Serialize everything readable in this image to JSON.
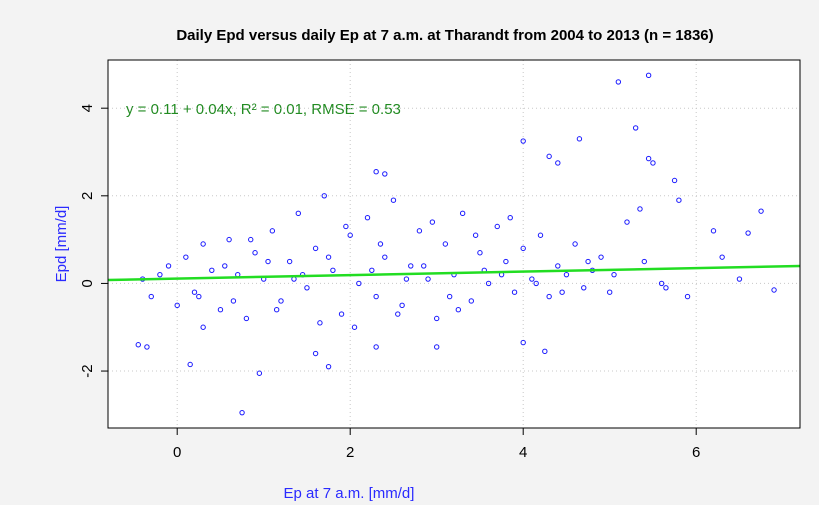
{
  "chart_data": {
    "type": "scatter",
    "title": "Daily Epd versus daily Ep at 7 a.m. at Tharandt from 2004 to 2013 (n = 1836)",
    "x_label": "Ep at 7 a.m. [mm/d]",
    "y_label": "Epd [mm/d]",
    "annotation": "y = 0.11 + 0.04x,  R² = 0.01,  RMSE = 0.53",
    "fit": {
      "intercept": 0.11,
      "slope": 0.04,
      "color": "#22dd22"
    },
    "color": "#1a1aff",
    "annotation_color": "#228b22",
    "label_color": "#2a2aff",
    "grid": true,
    "xlim": [
      -0.8,
      7.2
    ],
    "ylim": [
      -3.3,
      5.1
    ],
    "xticks": [
      0,
      2,
      4,
      6
    ],
    "yticks": [
      -2,
      0,
      2,
      4
    ],
    "x": [
      5.45,
      5.1,
      5.3,
      4.0,
      4.65,
      4.3,
      4.4,
      5.45,
      5.5,
      2.3,
      2.4,
      0.95,
      0.75,
      1.75,
      0.15,
      -0.45,
      -0.35,
      5.75,
      6.75,
      6.6,
      6.9,
      6.2,
      6.3,
      6.5,
      4.25,
      4.0,
      3.0,
      2.3,
      1.6,
      0.3,
      -0.4,
      -0.3,
      -0.2,
      -0.1,
      0.0,
      0.1,
      0.2,
      0.3,
      0.4,
      0.5,
      0.6,
      0.7,
      0.8,
      0.9,
      1.0,
      1.1,
      1.2,
      1.3,
      1.4,
      1.5,
      1.6,
      1.7,
      1.8,
      1.9,
      2.0,
      2.1,
      2.2,
      2.3,
      2.4,
      2.5,
      2.6,
      2.7,
      2.8,
      2.9,
      3.0,
      3.1,
      3.2,
      3.3,
      3.4,
      3.5,
      3.6,
      3.7,
      3.8,
      3.9,
      4.0,
      4.1,
      4.2,
      4.3,
      4.4,
      4.5,
      4.6,
      4.7,
      4.8,
      4.9,
      5.0,
      5.2,
      5.4,
      5.6,
      5.8,
      5.9,
      0.25,
      0.55,
      0.85,
      1.15,
      1.45,
      1.75,
      2.05,
      2.35,
      2.65,
      2.95,
      3.25,
      3.55,
      3.85,
      4.15,
      4.45,
      4.75,
      5.05,
      5.35,
      5.65,
      0.65,
      1.05,
      1.35,
      1.65,
      1.95,
      2.25,
      2.55,
      2.85,
      3.15,
      3.45,
      3.75
    ],
    "values": [
      4.75,
      4.6,
      3.55,
      3.25,
      3.3,
      2.9,
      2.75,
      2.85,
      2.75,
      2.55,
      2.5,
      -2.05,
      -2.95,
      -1.9,
      -1.85,
      -1.4,
      -1.45,
      2.35,
      1.65,
      1.15,
      -0.15,
      1.2,
      0.6,
      0.1,
      -1.55,
      -1.35,
      -1.45,
      -1.45,
      -1.6,
      -1.0,
      0.1,
      -0.3,
      0.2,
      0.4,
      -0.5,
      0.6,
      -0.2,
      0.9,
      0.3,
      -0.6,
      1.0,
      0.2,
      -0.8,
      0.7,
      0.1,
      1.2,
      -0.4,
      0.5,
      1.6,
      -0.1,
      0.8,
      2.0,
      0.3,
      -0.7,
      1.1,
      0.0,
      1.5,
      -0.3,
      0.6,
      1.9,
      -0.5,
      0.4,
      1.2,
      0.1,
      -0.8,
      0.9,
      0.2,
      1.6,
      -0.4,
      0.7,
      0.0,
      1.3,
      0.5,
      -0.2,
      0.8,
      0.1,
      1.1,
      -0.3,
      0.4,
      0.2,
      0.9,
      -0.1,
      0.3,
      0.6,
      -0.2,
      1.4,
      0.5,
      0.0,
      1.9,
      -0.3,
      -0.3,
      0.4,
      1.0,
      -0.6,
      0.2,
      0.6,
      -1.0,
      0.9,
      0.1,
      1.4,
      -0.6,
      0.3,
      1.5,
      0.0,
      -0.2,
      0.5,
      0.2,
      1.7,
      -0.1,
      -0.4,
      0.5,
      0.1,
      -0.9,
      1.3,
      0.3,
      -0.7,
      0.4,
      -0.3,
      1.1,
      0.2
    ]
  }
}
